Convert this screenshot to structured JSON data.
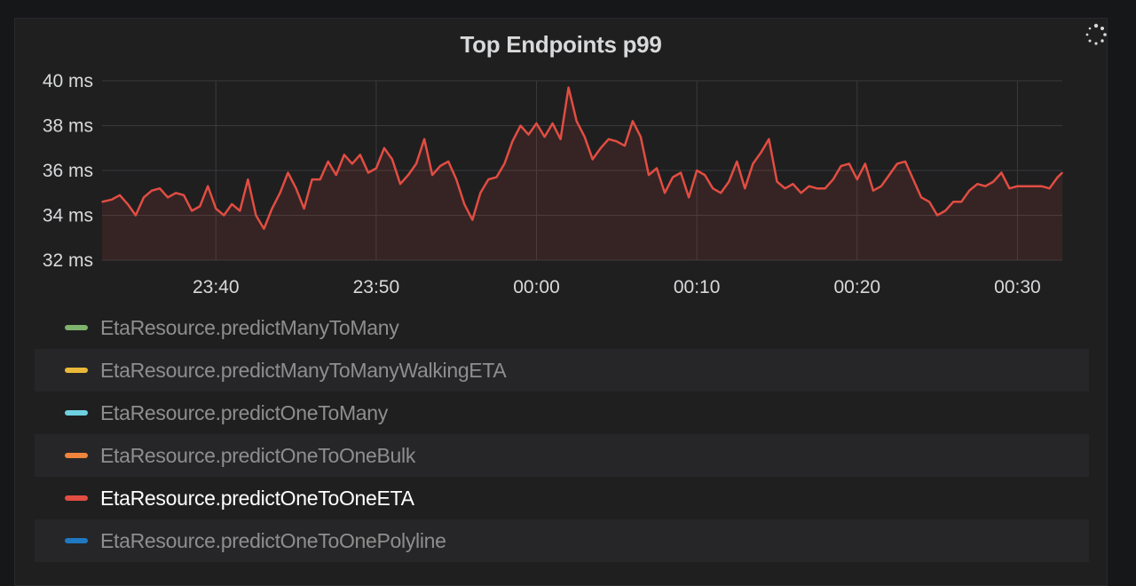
{
  "panel": {
    "title": "Top Endpoints p99"
  },
  "legend": [
    {
      "label": "EtaResource.predictManyToMany",
      "color": "#7eb26d",
      "active": false
    },
    {
      "label": "EtaResource.predictManyToManyWalkingETA",
      "color": "#eab839",
      "active": false
    },
    {
      "label": "EtaResource.predictOneToMany",
      "color": "#6ed0e0",
      "active": false
    },
    {
      "label": "EtaResource.predictOneToOneBulk",
      "color": "#ef843c",
      "active": false
    },
    {
      "label": "EtaResource.predictOneToOneETA",
      "color": "#e24d42",
      "active": true
    },
    {
      "label": "EtaResource.predictOneToOnePolyline",
      "color": "#1f78c1",
      "active": false
    }
  ],
  "chart_data": {
    "type": "line",
    "title": "Top Endpoints p99",
    "ylim": [
      32,
      40
    ],
    "yticks": [
      "40 ms",
      "38 ms",
      "36 ms",
      "34 ms",
      "32 ms"
    ],
    "ytick_values": [
      40,
      38,
      36,
      34,
      32
    ],
    "xticks": [
      "23:40",
      "23:50",
      "00:00",
      "00:10",
      "00:20",
      "00:30"
    ],
    "xtick_minutes": [
      -20,
      -10,
      0,
      10,
      20,
      30
    ],
    "x_range_minutes": [
      -27.1,
      32.8
    ],
    "grid": true,
    "fill": true,
    "series": [
      {
        "name": "EtaResource.predictOneToOneETA",
        "color": "#e24d42",
        "x_minutes": [
          -27.1,
          -26.5,
          -26,
          -25.5,
          -25,
          -24.5,
          -24,
          -23.5,
          -23,
          -22.5,
          -22,
          -21.5,
          -21,
          -20.5,
          -20,
          -19.5,
          -19,
          -18.5,
          -18,
          -17.5,
          -17,
          -16.5,
          -16,
          -15.5,
          -15,
          -14.5,
          -14,
          -13.5,
          -13,
          -12.5,
          -12,
          -11.5,
          -11,
          -10.5,
          -10,
          -9.5,
          -9,
          -8.5,
          -8,
          -7.5,
          -7,
          -6.5,
          -6,
          -5.5,
          -5,
          -4.5,
          -4,
          -3.5,
          -3,
          -2.5,
          -2,
          -1.5,
          -1,
          -0.5,
          0,
          0.5,
          1,
          1.5,
          2,
          2.5,
          3,
          3.5,
          4,
          4.5,
          5,
          5.5,
          6,
          6.5,
          7,
          7.5,
          8,
          8.5,
          9,
          9.5,
          10,
          10.5,
          11,
          11.5,
          12,
          12.5,
          13,
          13.5,
          14,
          14.5,
          15,
          15.5,
          16,
          16.5,
          17,
          17.5,
          18,
          18.5,
          19,
          19.5,
          20,
          20.5,
          21,
          21.5,
          22,
          22.5,
          23,
          23.5,
          24,
          24.5,
          25,
          25.5,
          26,
          26.5,
          27,
          27.5,
          28,
          28.5,
          29,
          29.5,
          30,
          30.5,
          31,
          31.5,
          32,
          32.5,
          32.8
        ],
        "values": [
          34.6,
          34.7,
          34.9,
          34.5,
          34.0,
          34.8,
          35.1,
          35.2,
          34.8,
          35.0,
          34.9,
          34.2,
          34.4,
          35.3,
          34.3,
          34.0,
          34.5,
          34.2,
          35.6,
          34.0,
          33.4,
          34.3,
          35.0,
          35.9,
          35.2,
          34.3,
          35.6,
          35.6,
          36.4,
          35.8,
          36.7,
          36.3,
          36.7,
          35.9,
          36.1,
          37.0,
          36.5,
          35.4,
          35.8,
          36.3,
          37.4,
          35.8,
          36.2,
          36.4,
          35.6,
          34.5,
          33.8,
          35.0,
          35.6,
          35.7,
          36.3,
          37.3,
          38.0,
          37.6,
          38.1,
          37.5,
          38.1,
          37.4,
          39.7,
          38.2,
          37.5,
          36.5,
          37.0,
          37.4,
          37.3,
          37.1,
          38.2,
          37.5,
          35.8,
          36.1,
          35.0,
          35.7,
          35.9,
          34.8,
          36.0,
          35.8,
          35.2,
          35.0,
          35.5,
          36.4,
          35.2,
          36.3,
          36.8,
          37.4,
          35.5,
          35.2,
          35.4,
          35.0,
          35.3,
          35.2,
          35.2,
          35.6,
          36.2,
          36.3,
          35.6,
          36.3,
          35.1,
          35.3,
          35.8,
          36.3,
          36.4,
          35.6,
          34.8,
          34.6,
          34.0,
          34.2,
          34.6,
          34.6,
          35.1,
          35.4,
          35.3,
          35.5,
          35.9,
          35.2,
          35.3,
          35.3,
          35.3,
          35.3,
          35.2,
          35.7,
          35.9
        ]
      }
    ]
  }
}
